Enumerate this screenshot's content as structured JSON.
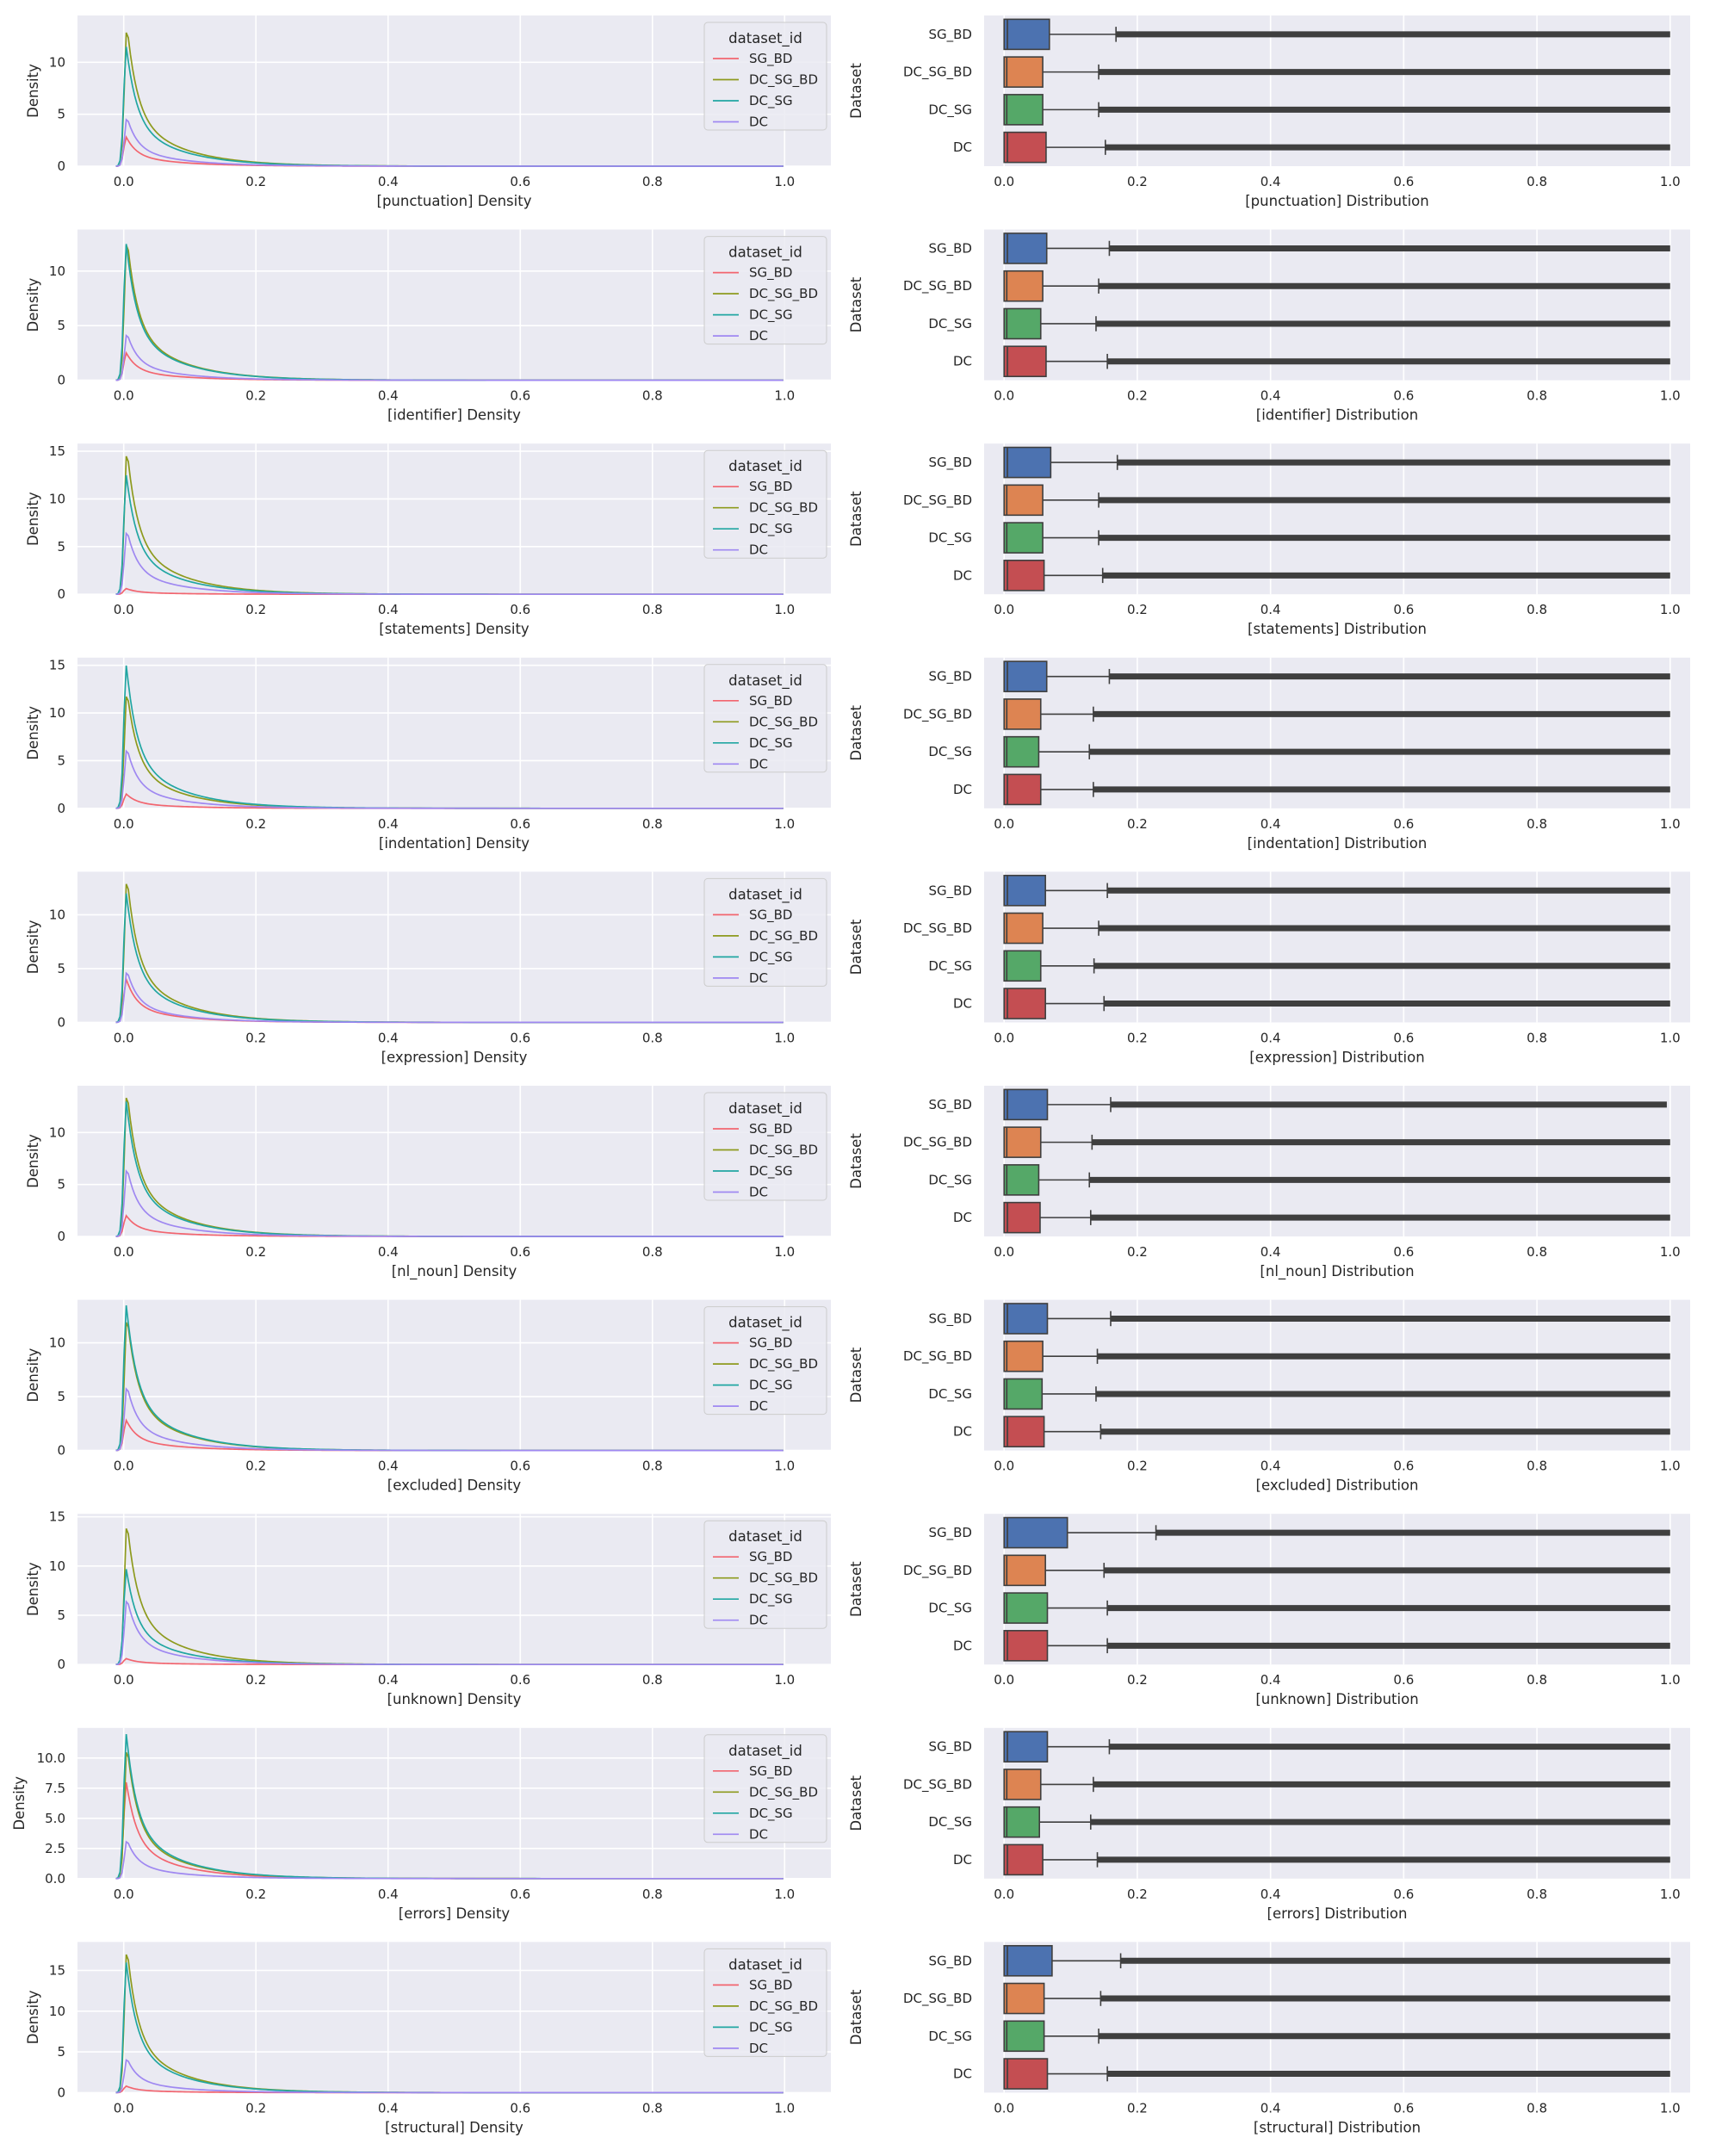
{
  "figure": {
    "density_ylabel": "Density",
    "box_ylabel": "Dataset",
    "legend_title": "dataset_id",
    "series": [
      "SG_BD",
      "DC_SG_BD",
      "DC_SG",
      "DC"
    ],
    "box_categories": [
      "SG_BD",
      "DC_SG_BD",
      "DC_SG",
      "DC"
    ],
    "kde_colors": [
      "#f2656f",
      "#8d9a1d",
      "#21a6a2",
      "#9f88f1"
    ],
    "box_colors": [
      "#4c72b0",
      "#dd8452",
      "#55a868",
      "#c44e52"
    ],
    "background": "#eaeaf2"
  },
  "chart_data": [
    {
      "type": "line",
      "feature": "punctuation",
      "xlabel": "[punctuation] Density",
      "ylabel": "Density",
      "xlim": [
        -0.07,
        1.07
      ],
      "ylim": [
        0,
        14.5
      ],
      "yticks": [
        "0",
        "5",
        "10"
      ],
      "ytick_values": [
        0,
        5,
        10
      ],
      "xticks": [
        "0.0",
        "0.2",
        "0.4",
        "0.6",
        "0.8",
        "1.0"
      ],
      "peaks": {
        "SG_BD": 2.8,
        "DC_SG_BD": 13.5,
        "DC_SG": 11.5,
        "DC": 4.7
      }
    },
    {
      "type": "box",
      "feature": "punctuation",
      "xlabel": "[punctuation] Distribution",
      "ylabel": "Dataset",
      "xlim": [
        -0.03,
        1.03
      ],
      "xticks": [
        "0.0",
        "0.2",
        "0.4",
        "0.6",
        "0.8",
        "1.0"
      ],
      "categories": [
        "SG_BD",
        "DC_SG_BD",
        "DC_SG",
        "DC"
      ],
      "q1": [
        0.0,
        0.0,
        0.0,
        0.0
      ],
      "median": [
        0.005,
        0.004,
        0.004,
        0.005
      ],
      "q3": [
        0.068,
        0.058,
        0.058,
        0.063
      ],
      "whisker_high": [
        0.168,
        0.142,
        0.142,
        0.152
      ],
      "max": [
        1.0,
        1.0,
        1.0,
        1.0
      ]
    },
    {
      "type": "line",
      "feature": "identifier",
      "xlabel": "[identifier] Density",
      "ylabel": "Density",
      "xlim": [
        -0.07,
        1.07
      ],
      "ylim": [
        0,
        13.8
      ],
      "yticks": [
        "0",
        "5",
        "10"
      ],
      "ytick_values": [
        0,
        5,
        10
      ],
      "xticks": [
        "0.0",
        "0.2",
        "0.4",
        "0.6",
        "0.8",
        "1.0"
      ],
      "peaks": {
        "SG_BD": 2.5,
        "DC_SG_BD": 13.0,
        "DC_SG": 12.5,
        "DC": 4.3
      }
    },
    {
      "type": "box",
      "feature": "identifier",
      "xlabel": "[identifier] Distribution",
      "ylabel": "Dataset",
      "xlim": [
        -0.03,
        1.03
      ],
      "xticks": [
        "0.0",
        "0.2",
        "0.4",
        "0.6",
        "0.8",
        "1.0"
      ],
      "categories": [
        "SG_BD",
        "DC_SG_BD",
        "DC_SG",
        "DC"
      ],
      "q1": [
        0.0,
        0.0,
        0.0,
        0.0
      ],
      "median": [
        0.005,
        0.004,
        0.004,
        0.005
      ],
      "q3": [
        0.064,
        0.058,
        0.055,
        0.063
      ],
      "whisker_high": [
        0.158,
        0.142,
        0.138,
        0.155
      ],
      "max": [
        1.0,
        1.0,
        1.0,
        1.0
      ]
    },
    {
      "type": "line",
      "feature": "statements",
      "xlabel": "[statements] Density",
      "ylabel": "Density",
      "xlim": [
        -0.07,
        1.07
      ],
      "ylim": [
        0,
        15.8
      ],
      "yticks": [
        "0",
        "5",
        "10",
        "15"
      ],
      "ytick_values": [
        0,
        5,
        10,
        15
      ],
      "xticks": [
        "0.0",
        "0.2",
        "0.4",
        "0.6",
        "0.8",
        "1.0"
      ],
      "peaks": {
        "SG_BD": 0.6,
        "DC_SG_BD": 15.2,
        "DC_SG": 12.5,
        "DC": 6.7
      }
    },
    {
      "type": "box",
      "feature": "statements",
      "xlabel": "[statements] Distribution",
      "ylabel": "Dataset",
      "xlim": [
        -0.03,
        1.03
      ],
      "xticks": [
        "0.0",
        "0.2",
        "0.4",
        "0.6",
        "0.8",
        "1.0"
      ],
      "categories": [
        "SG_BD",
        "DC_SG_BD",
        "DC_SG",
        "DC"
      ],
      "q1": [
        0.0,
        0.0,
        0.0,
        0.0
      ],
      "median": [
        0.005,
        0.004,
        0.004,
        0.005
      ],
      "q3": [
        0.07,
        0.058,
        0.058,
        0.06
      ],
      "whisker_high": [
        0.17,
        0.142,
        0.142,
        0.148
      ],
      "max": [
        1.0,
        1.0,
        1.0,
        1.0
      ]
    },
    {
      "type": "line",
      "feature": "indentation",
      "xlabel": "[indentation] Density",
      "ylabel": "Density",
      "xlim": [
        -0.07,
        1.07
      ],
      "ylim": [
        0,
        15.8
      ],
      "yticks": [
        "0",
        "5",
        "10",
        "15"
      ],
      "ytick_values": [
        0,
        5,
        10,
        15
      ],
      "xticks": [
        "0.0",
        "0.2",
        "0.4",
        "0.6",
        "0.8",
        "1.0"
      ],
      "peaks": {
        "SG_BD": 1.5,
        "DC_SG_BD": 12.3,
        "DC_SG": 15.0,
        "DC": 6.3
      }
    },
    {
      "type": "box",
      "feature": "indentation",
      "xlabel": "[indentation] Distribution",
      "ylabel": "Dataset",
      "xlim": [
        -0.03,
        1.03
      ],
      "xticks": [
        "0.0",
        "0.2",
        "0.4",
        "0.6",
        "0.8",
        "1.0"
      ],
      "categories": [
        "SG_BD",
        "DC_SG_BD",
        "DC_SG",
        "DC"
      ],
      "q1": [
        0.0,
        0.0,
        0.0,
        0.0
      ],
      "median": [
        0.005,
        0.004,
        0.004,
        0.005
      ],
      "q3": [
        0.064,
        0.055,
        0.052,
        0.055
      ],
      "whisker_high": [
        0.158,
        0.134,
        0.128,
        0.134
      ],
      "max": [
        1.0,
        1.0,
        1.0,
        1.0
      ]
    },
    {
      "type": "line",
      "feature": "expression",
      "xlabel": "[expression] Density",
      "ylabel": "Density",
      "xlim": [
        -0.07,
        1.07
      ],
      "ylim": [
        0,
        14.0
      ],
      "yticks": [
        "0",
        "5",
        "10"
      ],
      "ytick_values": [
        0,
        5,
        10
      ],
      "xticks": [
        "0.0",
        "0.2",
        "0.4",
        "0.6",
        "0.8",
        "1.0"
      ],
      "peaks": {
        "SG_BD": 4.0,
        "DC_SG_BD": 13.5,
        "DC_SG": 12.0,
        "DC": 4.8
      }
    },
    {
      "type": "box",
      "feature": "expression",
      "xlabel": "[expression] Distribution",
      "ylabel": "Dataset",
      "xlim": [
        -0.03,
        1.03
      ],
      "xticks": [
        "0.0",
        "0.2",
        "0.4",
        "0.6",
        "0.8",
        "1.0"
      ],
      "categories": [
        "SG_BD",
        "DC_SG_BD",
        "DC_SG",
        "DC"
      ],
      "q1": [
        0.0,
        0.0,
        0.0,
        0.0
      ],
      "median": [
        0.005,
        0.004,
        0.004,
        0.005
      ],
      "q3": [
        0.062,
        0.058,
        0.055,
        0.062
      ],
      "whisker_high": [
        0.155,
        0.142,
        0.135,
        0.15
      ],
      "max": [
        1.0,
        1.0,
        1.0,
        1.0
      ]
    },
    {
      "type": "line",
      "feature": "nl_noun",
      "xlabel": "[nl_noun] Density",
      "ylabel": "Density",
      "xlim": [
        -0.07,
        1.07
      ],
      "ylim": [
        0,
        14.5
      ],
      "yticks": [
        "0",
        "5",
        "10"
      ],
      "ytick_values": [
        0,
        5,
        10
      ],
      "xticks": [
        "0.0",
        "0.2",
        "0.4",
        "0.6",
        "0.8",
        "1.0"
      ],
      "peaks": {
        "SG_BD": 2.0,
        "DC_SG_BD": 14.0,
        "DC_SG": 13.0,
        "DC": 6.6
      }
    },
    {
      "type": "box",
      "feature": "nl_noun",
      "xlabel": "[nl_noun] Distribution",
      "ylabel": "Dataset",
      "xlim": [
        -0.03,
        1.03
      ],
      "xticks": [
        "0.0",
        "0.2",
        "0.4",
        "0.6",
        "0.8",
        "1.0"
      ],
      "categories": [
        "SG_BD",
        "DC_SG_BD",
        "DC_SG",
        "DC"
      ],
      "q1": [
        0.0,
        0.0,
        0.0,
        0.0
      ],
      "median": [
        0.005,
        0.004,
        0.004,
        0.005
      ],
      "q3": [
        0.065,
        0.055,
        0.052,
        0.054
      ],
      "whisker_high": [
        0.16,
        0.132,
        0.128,
        0.13
      ],
      "max": [
        0.995,
        1.0,
        1.0,
        1.0
      ]
    },
    {
      "type": "line",
      "feature": "excluded",
      "xlabel": "[excluded] Density",
      "ylabel": "Density",
      "xlim": [
        -0.07,
        1.07
      ],
      "ylim": [
        0,
        14.0
      ],
      "yticks": [
        "0",
        "5",
        "10"
      ],
      "ytick_values": [
        0,
        5,
        10
      ],
      "xticks": [
        "0.0",
        "0.2",
        "0.4",
        "0.6",
        "0.8",
        "1.0"
      ],
      "peaks": {
        "SG_BD": 2.8,
        "DC_SG_BD": 12.5,
        "DC_SG": 13.5,
        "DC": 6.0
      }
    },
    {
      "type": "box",
      "feature": "excluded",
      "xlabel": "[excluded] Distribution",
      "ylabel": "Dataset",
      "xlim": [
        -0.03,
        1.03
      ],
      "xticks": [
        "0.0",
        "0.2",
        "0.4",
        "0.6",
        "0.8",
        "1.0"
      ],
      "categories": [
        "SG_BD",
        "DC_SG_BD",
        "DC_SG",
        "DC"
      ],
      "q1": [
        0.0,
        0.0,
        0.0,
        0.0
      ],
      "median": [
        0.005,
        0.004,
        0.004,
        0.005
      ],
      "q3": [
        0.065,
        0.058,
        0.057,
        0.06
      ],
      "whisker_high": [
        0.16,
        0.14,
        0.138,
        0.145
      ],
      "max": [
        1.0,
        1.0,
        1.0,
        1.0
      ]
    },
    {
      "type": "line",
      "feature": "unknown",
      "xlabel": "[unknown] Density",
      "ylabel": "Density",
      "xlim": [
        -0.07,
        1.07
      ],
      "ylim": [
        0,
        15.3
      ],
      "yticks": [
        "0",
        "5",
        "10",
        "15"
      ],
      "ytick_values": [
        0,
        5,
        10,
        15
      ],
      "xticks": [
        "0.0",
        "0.2",
        "0.4",
        "0.6",
        "0.8",
        "1.0"
      ],
      "peaks": {
        "SG_BD": 0.6,
        "DC_SG_BD": 14.5,
        "DC_SG": 9.7,
        "DC": 6.7
      }
    },
    {
      "type": "box",
      "feature": "unknown",
      "xlabel": "[unknown] Distribution",
      "ylabel": "Dataset",
      "xlim": [
        -0.03,
        1.03
      ],
      "xticks": [
        "0.0",
        "0.2",
        "0.4",
        "0.6",
        "0.8",
        "1.0"
      ],
      "categories": [
        "SG_BD",
        "DC_SG_BD",
        "DC_SG",
        "DC"
      ],
      "q1": [
        0.0,
        0.0,
        0.0,
        0.0
      ],
      "median": [
        0.005,
        0.004,
        0.004,
        0.005
      ],
      "q3": [
        0.095,
        0.062,
        0.065,
        0.065
      ],
      "whisker_high": [
        0.228,
        0.15,
        0.155,
        0.155
      ],
      "max": [
        1.0,
        1.0,
        1.0,
        1.0
      ]
    },
    {
      "type": "line",
      "feature": "errors",
      "xlabel": "[errors] Density",
      "ylabel": "Density",
      "xlim": [
        -0.07,
        1.07
      ],
      "ylim": [
        0,
        12.5
      ],
      "yticks": [
        "0.0",
        "2.5",
        "5.0",
        "7.5",
        "10.0"
      ],
      "ytick_values": [
        0,
        2.5,
        5,
        7.5,
        10
      ],
      "xticks": [
        "0.0",
        "0.2",
        "0.4",
        "0.6",
        "0.8",
        "1.0"
      ],
      "peaks": {
        "SG_BD": 8.0,
        "DC_SG_BD": 11.0,
        "DC_SG": 12.0,
        "DC": 3.2
      }
    },
    {
      "type": "box",
      "feature": "errors",
      "xlabel": "[errors] Distribution",
      "ylabel": "Dataset",
      "xlim": [
        -0.03,
        1.03
      ],
      "xticks": [
        "0.0",
        "0.2",
        "0.4",
        "0.6",
        "0.8",
        "1.0"
      ],
      "categories": [
        "SG_BD",
        "DC_SG_BD",
        "DC_SG",
        "DC"
      ],
      "q1": [
        0.0,
        0.0,
        0.0,
        0.0
      ],
      "median": [
        0.005,
        0.004,
        0.004,
        0.005
      ],
      "q3": [
        0.065,
        0.055,
        0.053,
        0.058
      ],
      "whisker_high": [
        0.158,
        0.134,
        0.13,
        0.14
      ],
      "max": [
        1.0,
        1.0,
        1.0,
        1.0
      ]
    },
    {
      "type": "line",
      "feature": "structural",
      "xlabel": "[structural] Density",
      "ylabel": "Density",
      "xlim": [
        -0.07,
        1.07
      ],
      "ylim": [
        0,
        18.5
      ],
      "yticks": [
        "0",
        "5",
        "10",
        "15"
      ],
      "ytick_values": [
        0,
        5,
        10,
        15
      ],
      "xticks": [
        "0.0",
        "0.2",
        "0.4",
        "0.6",
        "0.8",
        "1.0"
      ],
      "peaks": {
        "SG_BD": 0.8,
        "DC_SG_BD": 17.8,
        "DC_SG": 16.0,
        "DC": 4.2
      }
    },
    {
      "type": "box",
      "feature": "structural",
      "xlabel": "[structural] Distribution",
      "ylabel": "Dataset",
      "xlim": [
        -0.03,
        1.03
      ],
      "xticks": [
        "0.0",
        "0.2",
        "0.4",
        "0.6",
        "0.8",
        "1.0"
      ],
      "categories": [
        "SG_BD",
        "DC_SG_BD",
        "DC_SG",
        "DC"
      ],
      "q1": [
        0.0,
        0.0,
        0.0,
        0.0
      ],
      "median": [
        0.005,
        0.004,
        0.004,
        0.005
      ],
      "q3": [
        0.072,
        0.06,
        0.06,
        0.065
      ],
      "whisker_high": [
        0.175,
        0.145,
        0.142,
        0.155
      ],
      "max": [
        1.0,
        1.0,
        1.0,
        1.0
      ]
    }
  ]
}
